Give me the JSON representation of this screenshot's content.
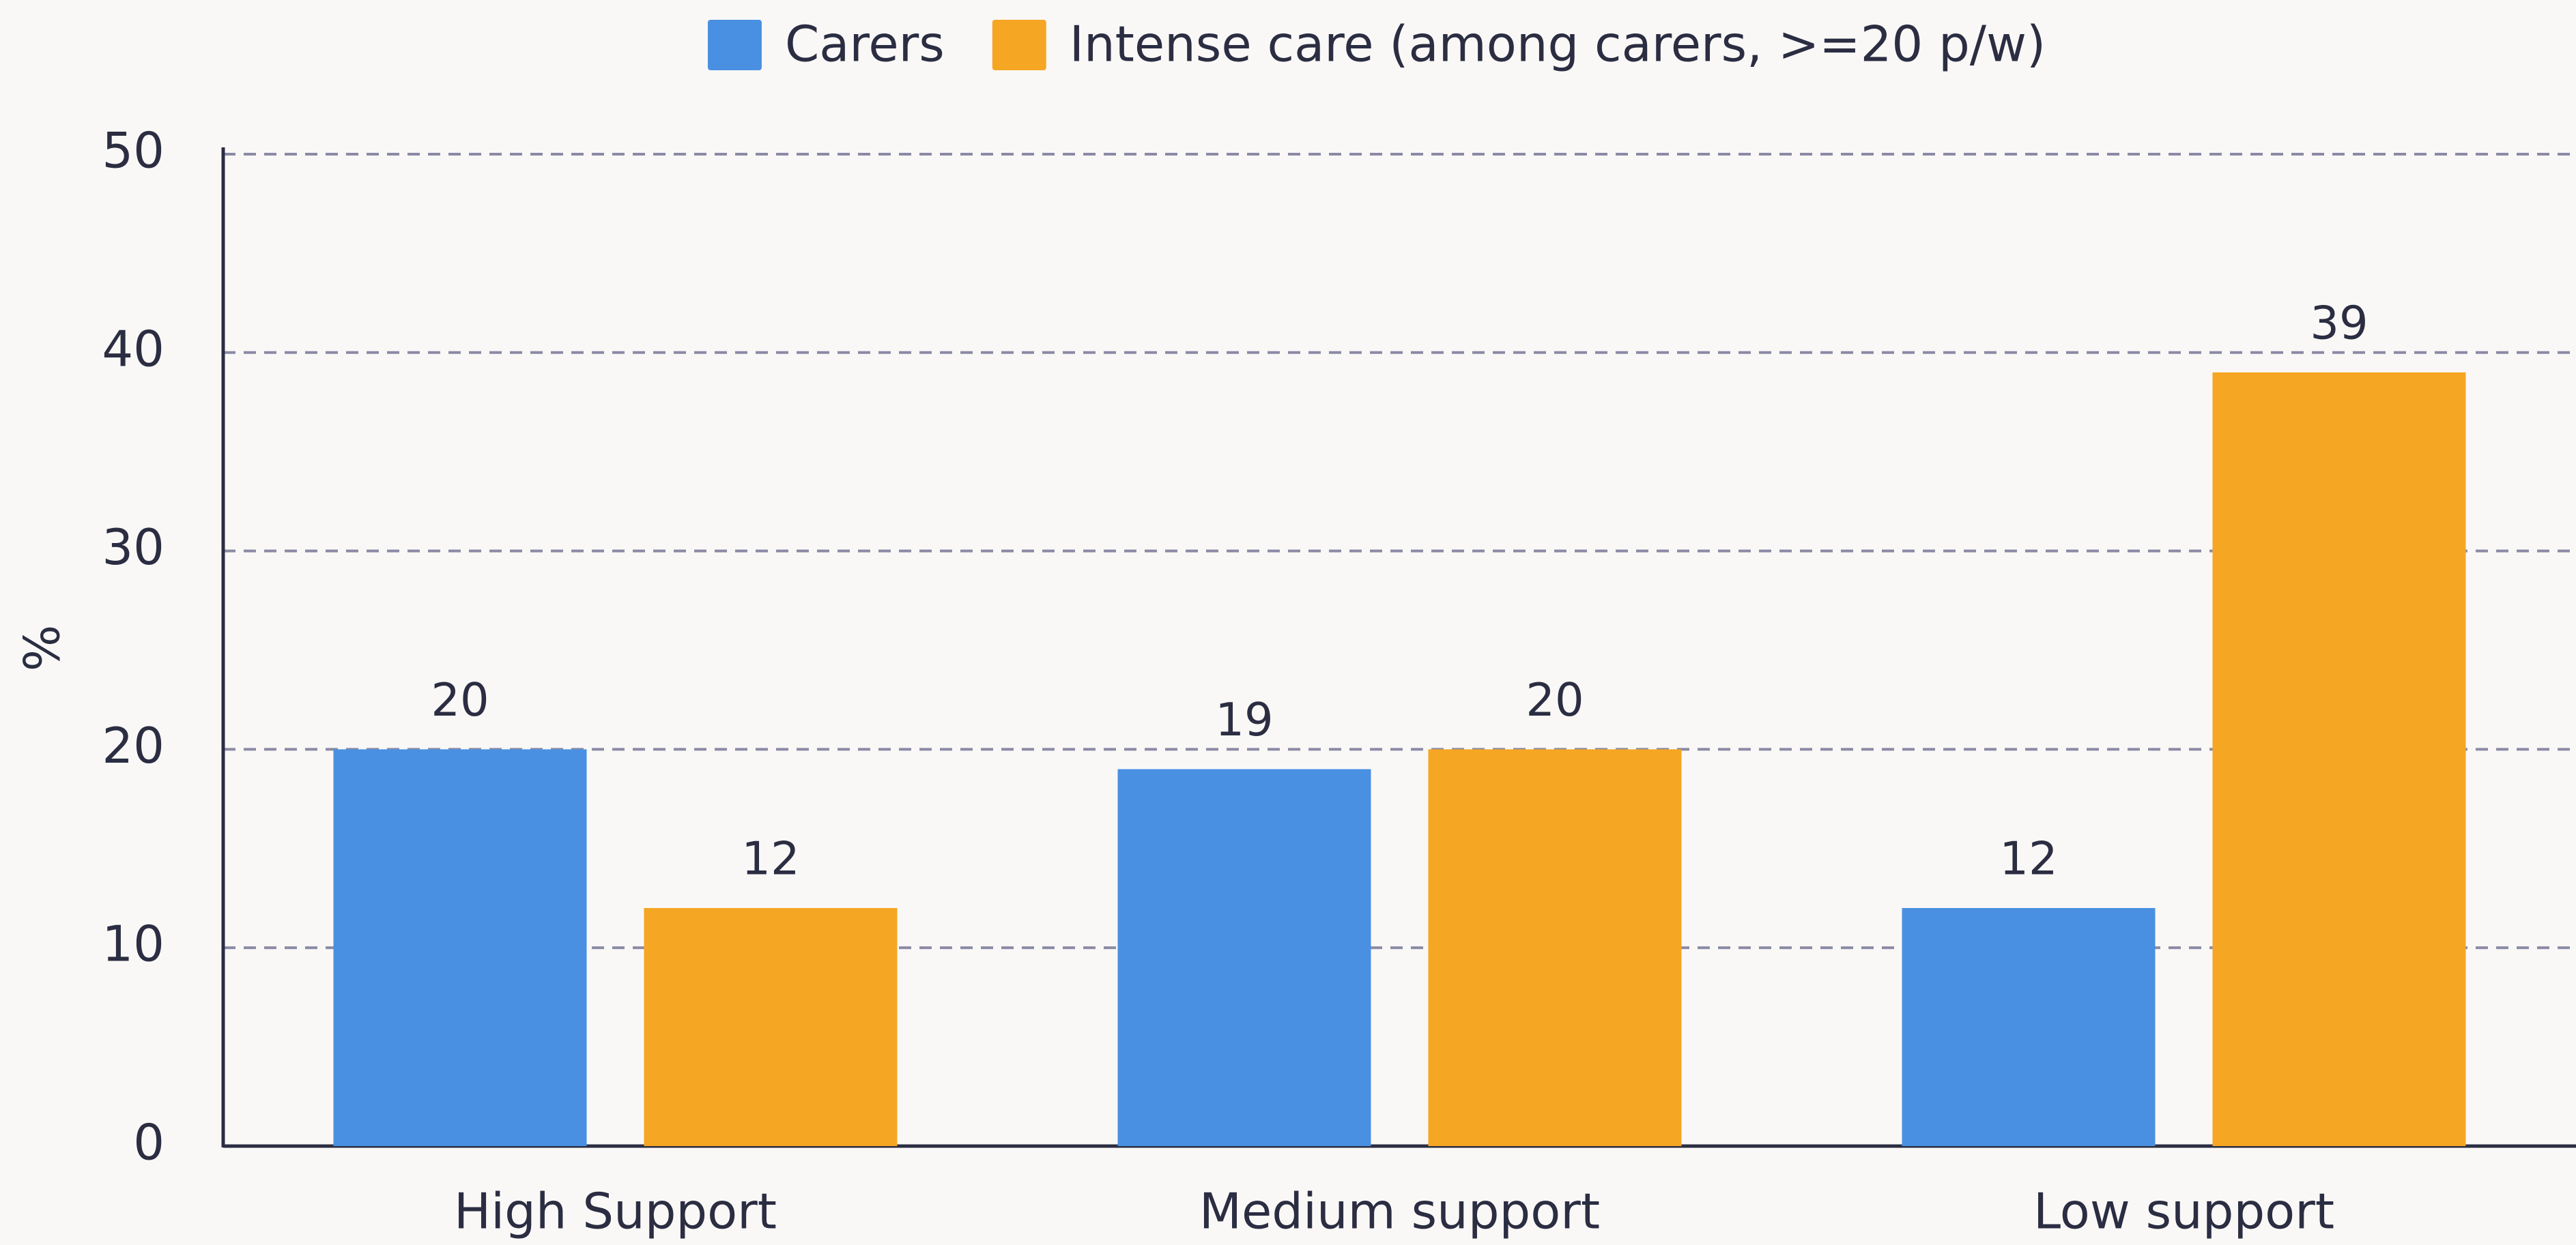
{
  "chart_data": {
    "type": "bar",
    "categories": [
      "High Support",
      "Medium support",
      "Low support"
    ],
    "series": [
      {
        "name": "Carers",
        "color": "#4a90e2",
        "values": [
          20,
          19,
          12
        ]
      },
      {
        "name": "Intense care (among carers, >=20 p/w)",
        "color": "#f5a623",
        "values": [
          12,
          20,
          39
        ]
      }
    ],
    "ylabel": "%",
    "ylim": [
      0,
      50
    ],
    "yticks": [
      0,
      10,
      20,
      30,
      40,
      50
    ],
    "grid": true,
    "legend": "top"
  }
}
